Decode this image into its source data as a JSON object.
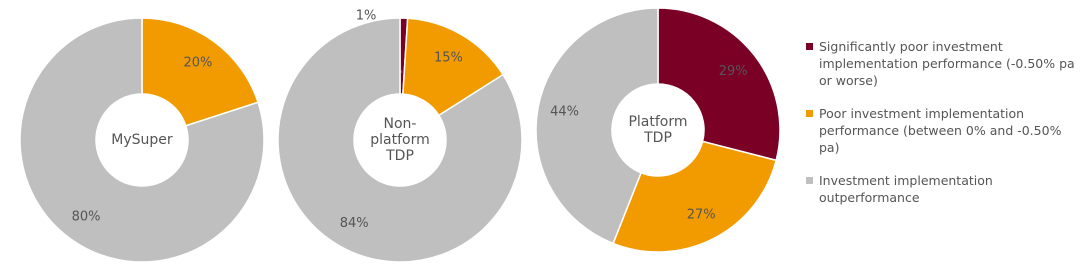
{
  "chart_data": [
    {
      "type": "pie",
      "title": "MySuper",
      "categories": [
        "Poor investment implementation performance (between 0% and -0.50% pa)",
        "Investment implementation outperformance"
      ],
      "values": [
        20,
        80
      ],
      "value_labels": [
        "20%",
        "80%"
      ],
      "colors": [
        "#f29b00",
        "#bfbfbf"
      ]
    },
    {
      "type": "pie",
      "title": "Non-platform TDP",
      "categories": [
        "Significantly poor investment implementation performance (-0.50% pa or worse)",
        "Poor investment implementation performance (between 0% and -0.50% pa)",
        "Investment implementation outperformance"
      ],
      "values": [
        1,
        15,
        84
      ],
      "value_labels": [
        "1%",
        "15%",
        "84%"
      ],
      "colors": [
        "#7b0025",
        "#f29b00",
        "#bfbfbf"
      ]
    },
    {
      "type": "pie",
      "title": "Platform TDP",
      "categories": [
        "Significantly poor investment implementation performance (-0.50% pa or worse)",
        "Poor investment implementation performance (between 0% and -0.50% pa)",
        "Investment implementation outperformance"
      ],
      "values": [
        29,
        27,
        44
      ],
      "value_labels": [
        "29%",
        "27%",
        "44%"
      ],
      "colors": [
        "#7b0025",
        "#f29b00",
        "#bfbfbf"
      ]
    }
  ]
}
